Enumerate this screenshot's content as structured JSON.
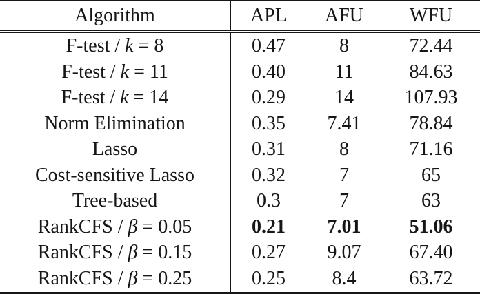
{
  "table": {
    "background": "#ffffff",
    "text_color": "#161616",
    "rule_color": "#161616",
    "columns": [
      "Algorithm",
      "APL",
      "AFU",
      "WFU"
    ],
    "rows": [
      {
        "label_pre": "F-test / ",
        "label_math": "k",
        "label_post": " = 8",
        "apl": "0.47",
        "afu": "8",
        "wfu": "72.44",
        "emphasis": "none"
      },
      {
        "label_pre": "F-test / ",
        "label_math": "k",
        "label_post": " = 11",
        "apl": "0.40",
        "afu": "11",
        "wfu": "84.63",
        "emphasis": "none"
      },
      {
        "label_pre": "F-test / ",
        "label_math": "k",
        "label_post": " = 14",
        "apl": "0.29",
        "afu": "14",
        "wfu": "107.93",
        "emphasis": "none"
      },
      {
        "label_pre": "Norm Elimination",
        "label_math": "",
        "label_post": "",
        "apl": "0.35",
        "afu": "7.41",
        "wfu": "78.84",
        "emphasis": "none"
      },
      {
        "label_pre": "Lasso",
        "label_math": "",
        "label_post": "",
        "apl": "0.31",
        "afu": "8",
        "wfu": "71.16",
        "emphasis": "none"
      },
      {
        "label_pre": "Cost-sensitive Lasso",
        "label_math": "",
        "label_post": "",
        "apl": "0.32",
        "afu": "7",
        "wfu": "65",
        "emphasis": "none"
      },
      {
        "label_pre": "Tree-based",
        "label_math": "",
        "label_post": "",
        "apl": "0.3",
        "afu": "7",
        "wfu": "63",
        "emphasis": "none"
      },
      {
        "label_pre": "RankCFS / ",
        "label_math": "β",
        "label_post": " = 0.05",
        "apl": "0.21",
        "afu": "7.01",
        "wfu": "51.06",
        "emphasis": "bold-values"
      },
      {
        "label_pre": "RankCFS / ",
        "label_math": "β",
        "label_post": " = 0.15",
        "apl": "0.27",
        "afu": "9.07",
        "wfu": "67.40",
        "emphasis": "none"
      },
      {
        "label_pre": "RankCFS / ",
        "label_math": "β",
        "label_post": " = 0.25",
        "apl": "0.25",
        "afu": "8.4",
        "wfu": "63.72",
        "emphasis": "none"
      }
    ]
  }
}
